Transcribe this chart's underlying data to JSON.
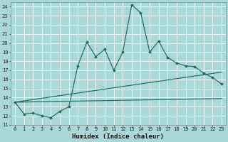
{
  "xlabel": "Humidex (Indice chaleur)",
  "bg_color": "#aad8d8",
  "grid_color": "#ffffff",
  "line_color": "#1a6b5a",
  "xlim": [
    -0.5,
    23.5
  ],
  "ylim": [
    11,
    24.5
  ],
  "xticks": [
    0,
    1,
    2,
    3,
    4,
    5,
    6,
    7,
    8,
    9,
    10,
    11,
    12,
    13,
    14,
    15,
    16,
    17,
    18,
    19,
    20,
    21,
    22,
    23
  ],
  "yticks": [
    11,
    12,
    13,
    14,
    15,
    16,
    17,
    18,
    19,
    20,
    21,
    22,
    23,
    24
  ],
  "main_x": [
    0,
    1,
    2,
    3,
    4,
    5,
    6,
    7,
    8,
    9,
    10,
    11,
    12,
    13,
    14,
    15,
    16,
    17,
    18,
    19,
    20,
    21,
    22,
    23
  ],
  "main_y": [
    13.5,
    12.2,
    12.3,
    12.0,
    11.8,
    12.5,
    13.0,
    17.5,
    20.1,
    18.5,
    19.3,
    17.0,
    19.0,
    24.2,
    23.3,
    19.0,
    20.2,
    18.4,
    17.8,
    17.5,
    17.4,
    16.7,
    16.2,
    15.5
  ],
  "line2_x": [
    0,
    23
  ],
  "line2_y": [
    13.5,
    16.8
  ],
  "line3_x": [
    0,
    23
  ],
  "line3_y": [
    13.5,
    13.9
  ],
  "tick_fontsize": 5.0,
  "xlabel_fontsize": 6.5
}
